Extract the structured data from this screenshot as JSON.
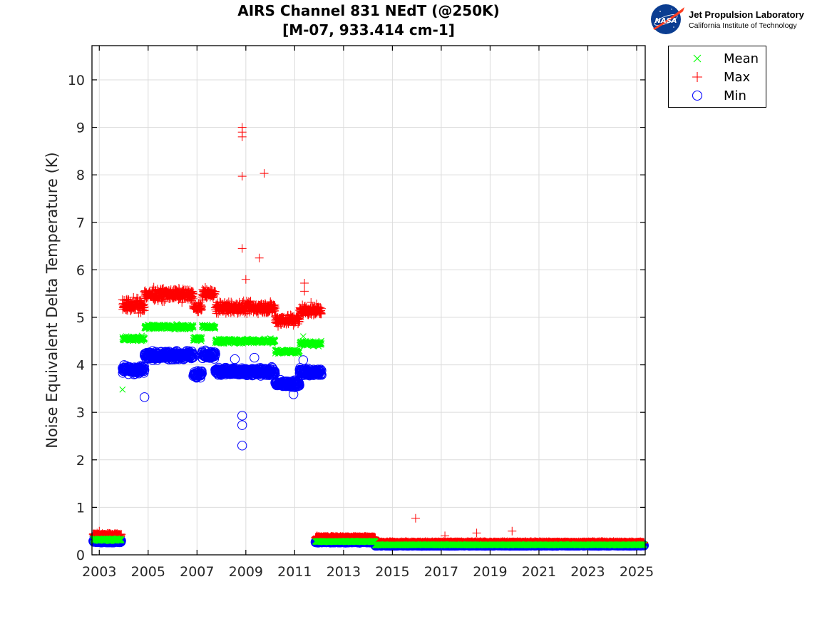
{
  "header": {
    "title_line1": "AIRS Channel 831 NEdT (@250K)",
    "title_line2": "[M-07, 933.414 cm-1]"
  },
  "logo": {
    "badge_text": "NASA",
    "org_name": "Jet Propulsion Laboratory",
    "org_sub": "California Institute of Technology"
  },
  "chart_data": {
    "type": "scatter",
    "title": "AIRS Channel 831 NEdT (@250K) [M-07, 933.414 cm-1]",
    "xlabel": "",
    "ylabel": "Noise Equivalent Delta Temperature (K)",
    "xlim": [
      2002.7,
      2025.35
    ],
    "ylim": [
      0,
      10.72
    ],
    "xticks": [
      2003,
      2005,
      2007,
      2009,
      2011,
      2013,
      2015,
      2017,
      2019,
      2021,
      2023,
      2025
    ],
    "yticks": [
      0,
      1,
      2,
      3,
      4,
      5,
      6,
      7,
      8,
      9,
      10
    ],
    "grid": true,
    "legend": {
      "placement": "outside-top-right",
      "entries": [
        "Mean",
        "Max",
        "Min"
      ]
    },
    "series": [
      {
        "name": "Mean",
        "marker": "x",
        "color": "#00ff00",
        "segments": [
          {
            "x0": 2002.75,
            "x1": 2003.9,
            "level": 0.32,
            "spread": 0.04
          },
          {
            "x0": 2003.95,
            "x1": 2004.85,
            "level": 4.55,
            "spread": 0.07
          },
          {
            "x0": 2004.85,
            "x1": 2006.85,
            "level": 4.8,
            "spread": 0.07
          },
          {
            "x0": 2006.85,
            "x1": 2007.2,
            "level": 4.55,
            "spread": 0.06
          },
          {
            "x0": 2007.2,
            "x1": 2007.75,
            "level": 4.8,
            "spread": 0.06
          },
          {
            "x0": 2007.75,
            "x1": 2010.2,
            "level": 4.5,
            "spread": 0.07
          },
          {
            "x0": 2010.2,
            "x1": 2011.2,
            "level": 4.28,
            "spread": 0.06
          },
          {
            "x0": 2011.2,
            "x1": 2012.1,
            "level": 4.45,
            "spread": 0.07
          },
          {
            "x0": 2011.85,
            "x1": 2014.3,
            "level": 0.28,
            "spread": 0.02
          },
          {
            "x0": 2014.3,
            "x1": 2025.3,
            "level": 0.21,
            "spread": 0.015
          }
        ],
        "outliers": [
          {
            "x": 2003.95,
            "y": 3.48
          },
          {
            "x": 2011.35,
            "y": 4.6
          }
        ]
      },
      {
        "name": "Max",
        "marker": "+",
        "color": "#ff0000",
        "segments": [
          {
            "x0": 2002.75,
            "x1": 2003.9,
            "level": 0.42,
            "spread": 0.05
          },
          {
            "x0": 2003.95,
            "x1": 2004.85,
            "level": 5.25,
            "spread": 0.2
          },
          {
            "x0": 2004.85,
            "x1": 2006.85,
            "level": 5.48,
            "spread": 0.18
          },
          {
            "x0": 2006.85,
            "x1": 2007.2,
            "level": 5.2,
            "spread": 0.15
          },
          {
            "x0": 2007.2,
            "x1": 2007.75,
            "level": 5.5,
            "spread": 0.15
          },
          {
            "x0": 2007.75,
            "x1": 2010.2,
            "level": 5.2,
            "spread": 0.18
          },
          {
            "x0": 2010.2,
            "x1": 2011.2,
            "level": 4.95,
            "spread": 0.17
          },
          {
            "x0": 2011.2,
            "x1": 2012.1,
            "level": 5.15,
            "spread": 0.17
          },
          {
            "x0": 2011.85,
            "x1": 2014.3,
            "level": 0.37,
            "spread": 0.03
          },
          {
            "x0": 2014.3,
            "x1": 2025.3,
            "level": 0.26,
            "spread": 0.025
          }
        ],
        "outliers": [
          {
            "x": 2008.85,
            "y": 9.0
          },
          {
            "x": 2008.85,
            "y": 8.9
          },
          {
            "x": 2008.85,
            "y": 8.8
          },
          {
            "x": 2008.85,
            "y": 7.97
          },
          {
            "x": 2009.75,
            "y": 8.03
          },
          {
            "x": 2008.85,
            "y": 6.45
          },
          {
            "x": 2009.55,
            "y": 6.25
          },
          {
            "x": 2009.0,
            "y": 5.8
          },
          {
            "x": 2011.4,
            "y": 5.72
          },
          {
            "x": 2011.4,
            "y": 5.55
          },
          {
            "x": 2003.0,
            "y": 0.5
          },
          {
            "x": 2015.95,
            "y": 0.77
          },
          {
            "x": 2017.15,
            "y": 0.4
          },
          {
            "x": 2018.45,
            "y": 0.46
          },
          {
            "x": 2019.9,
            "y": 0.5
          }
        ]
      },
      {
        "name": "Min",
        "marker": "o",
        "color": "#0000ff",
        "segments": [
          {
            "x0": 2002.75,
            "x1": 2003.9,
            "level": 0.28,
            "spread": 0.03
          },
          {
            "x0": 2003.95,
            "x1": 2004.85,
            "level": 3.9,
            "spread": 0.12
          },
          {
            "x0": 2004.85,
            "x1": 2006.85,
            "level": 4.2,
            "spread": 0.12
          },
          {
            "x0": 2006.85,
            "x1": 2007.2,
            "level": 3.8,
            "spread": 0.1
          },
          {
            "x0": 2007.2,
            "x1": 2007.75,
            "level": 4.2,
            "spread": 0.12
          },
          {
            "x0": 2007.75,
            "x1": 2010.2,
            "level": 3.85,
            "spread": 0.12
          },
          {
            "x0": 2010.2,
            "x1": 2011.2,
            "level": 3.6,
            "spread": 0.1
          },
          {
            "x0": 2011.2,
            "x1": 2012.1,
            "level": 3.85,
            "spread": 0.12
          },
          {
            "x0": 2011.85,
            "x1": 2014.3,
            "level": 0.27,
            "spread": 0.02
          },
          {
            "x0": 2014.3,
            "x1": 2025.3,
            "level": 0.2,
            "spread": 0.015
          }
        ],
        "outliers": [
          {
            "x": 2008.85,
            "y": 2.93
          },
          {
            "x": 2008.85,
            "y": 2.73
          },
          {
            "x": 2008.85,
            "y": 2.3
          },
          {
            "x": 2004.85,
            "y": 3.32
          },
          {
            "x": 2010.95,
            "y": 3.38
          },
          {
            "x": 2009.35,
            "y": 4.15
          },
          {
            "x": 2008.55,
            "y": 4.12
          },
          {
            "x": 2011.35,
            "y": 4.1
          },
          {
            "x": 2002.8,
            "y": 0.38
          },
          {
            "x": 2011.85,
            "y": 0.27
          },
          {
            "x": 2025.2,
            "y": 0.2
          }
        ]
      }
    ]
  }
}
